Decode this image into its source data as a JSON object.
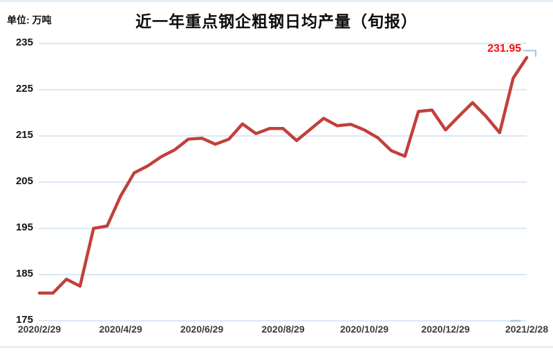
{
  "chart_data": {
    "type": "line",
    "title": "近一年重点钢企粗钢日均产量（旬报）",
    "unit_label": "单位: 万吨",
    "ylabel": "万吨",
    "ylim": [
      175,
      235
    ],
    "y_ticks": [
      235,
      225,
      215,
      205,
      195,
      185,
      175
    ],
    "x_tick_labels": [
      "2020/2/29",
      "2020/4/29",
      "2020/6/29",
      "2020/8/29",
      "2020/10/29",
      "2020/12/29",
      "2021/2/28"
    ],
    "x_ticks_every_n_points": 6,
    "values": [
      181,
      181,
      184,
      182.5,
      195,
      195.5,
      202,
      207,
      208.5,
      210.5,
      212,
      214.3,
      214.5,
      213.2,
      214.3,
      217.6,
      215.5,
      216.6,
      216.6,
      214,
      216.4,
      218.8,
      217.2,
      217.5,
      216.3,
      214.6,
      211.8,
      210.6,
      220.3,
      220.6,
      216.3,
      219.3,
      222.2,
      219.2,
      215.7,
      227.5,
      231.95
    ],
    "annotation": {
      "text": "231.95",
      "color": "#f20d0d",
      "applies_to": "last-point"
    },
    "grid": "horizontal-only",
    "legend_position": "none",
    "colors": {
      "series": "#c2403a",
      "gridline": "#dae8f5",
      "endpoint_marker": "#9fc3e4",
      "bottom_dash": "#a9c7e4",
      "topbar": "#e4eef9"
    }
  }
}
